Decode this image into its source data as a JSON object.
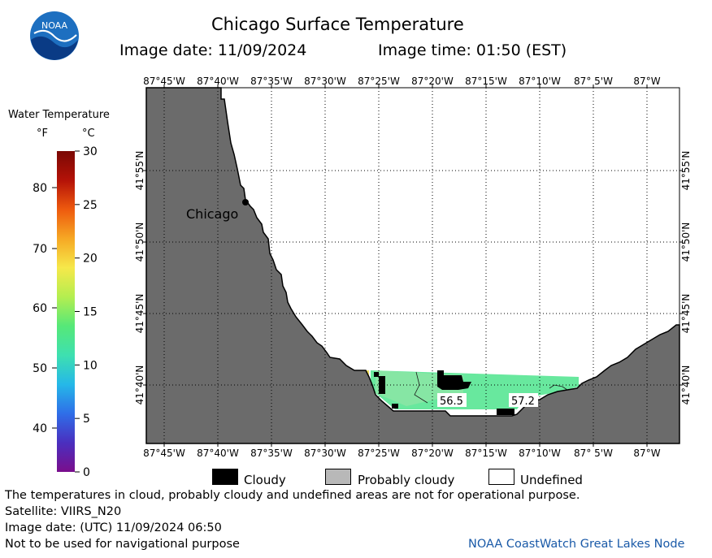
{
  "header": {
    "title": "Chicago Surface Temperature",
    "image_date": "Image date: 11/09/2024",
    "image_time": "Image time: 01:50 (EST)",
    "logo_text": "NOAA"
  },
  "colorbar": {
    "title": "Water Temperature",
    "unit_f": "°F",
    "unit_c": "°C",
    "f_ticks": [
      "80",
      "70",
      "60",
      "50",
      "40"
    ],
    "c_ticks": [
      "30",
      "25",
      "20",
      "15",
      "10",
      "5",
      "0"
    ],
    "colors": [
      "#7a0e8c",
      "#4a2fbf",
      "#2f6ee8",
      "#25b8e8",
      "#3ee0b0",
      "#56e878",
      "#b4ee50",
      "#f6e84a",
      "#f6a824",
      "#ee5a0e",
      "#b41208",
      "#7a0804"
    ]
  },
  "map": {
    "lon_labels": [
      "87°45'W",
      "87°40'W",
      "87°35'W",
      "87°30'W",
      "87°25'W",
      "87°20'W",
      "87°15'W",
      "87°10'W",
      "87° 5'W",
      "87°W"
    ],
    "lat_labels": [
      "41°55'N",
      "41°50'N",
      "41°45'N",
      "41°40'N"
    ],
    "city_label": "Chicago",
    "temp_labels": [
      "56.5",
      "57.2"
    ],
    "colors": {
      "land": "#6b6b6b",
      "cloud": "#000000",
      "water_warm": "#78e8a0",
      "water_cool": "#66ea9c",
      "water_yellow": "#f2e060"
    }
  },
  "legend": {
    "cloudy": "Cloudy",
    "probably_cloudy": "Probably cloudy",
    "undefined": "Undefined"
  },
  "footer": {
    "disclaimer": "The temperatures in cloud, probably cloudy and undefined areas are not for operational purpose.",
    "satellite": "Satellite: VIIRS_N20",
    "utc_date": "Image date: (UTC) 11/09/2024  06:50",
    "nav_warning": "Not to be used for navigational purpose",
    "credit": "NOAA CoastWatch Great Lakes Node"
  }
}
